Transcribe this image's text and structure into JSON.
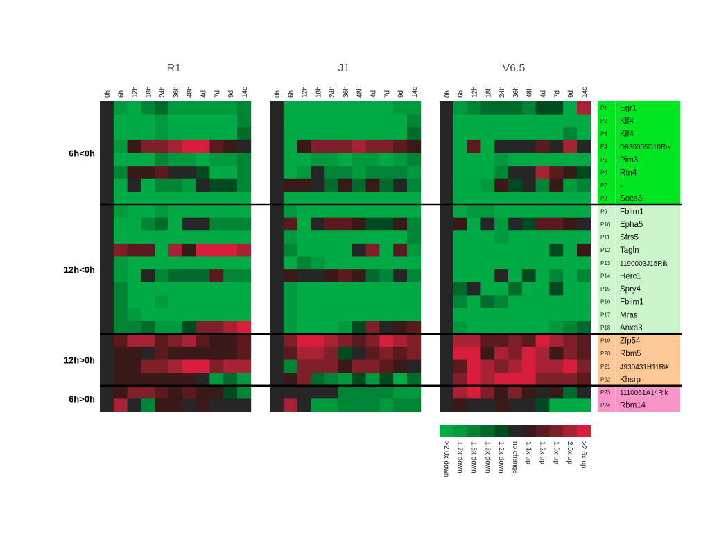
{
  "chart_data": {
    "type": "heatmap",
    "panels": [
      "R1",
      "J1",
      "V6.5"
    ],
    "timepoints": [
      "0h",
      "6h",
      "12h",
      "18h",
      "24h",
      "36h",
      "48h",
      "4d",
      "7d",
      "9d",
      "14d"
    ],
    "row_groups": [
      {
        "label": "6h<0h",
        "rows": 8
      },
      {
        "label": "12h<0h",
        "rows": 10
      },
      {
        "label": "12h>0h",
        "rows": 4
      },
      {
        "label": "6h>0h",
        "rows": 2
      }
    ],
    "genes": [
      {
        "id": "P1",
        "name": "Egr1",
        "group_color": "#00e620"
      },
      {
        "id": "P2",
        "name": "Klf4",
        "group_color": "#00e620"
      },
      {
        "id": "P3",
        "name": "Klf4",
        "group_color": "#00e620"
      },
      {
        "id": "P4",
        "name": "D930005D10Rik",
        "group_color": "#00e620"
      },
      {
        "id": "P5",
        "name": "Pim3",
        "group_color": "#00e620"
      },
      {
        "id": "P6",
        "name": "Rtn4",
        "group_color": "#00e620"
      },
      {
        "id": "P7",
        "name": "-",
        "group_color": "#00e620"
      },
      {
        "id": "P8",
        "name": "Socs3",
        "group_color": "#00e620"
      },
      {
        "id": "P9",
        "name": "Fblim1",
        "group_color": "#ccf5cc"
      },
      {
        "id": "P10",
        "name": "Epha5",
        "group_color": "#ccf5cc"
      },
      {
        "id": "P11",
        "name": "Sfrs5",
        "group_color": "#ccf5cc"
      },
      {
        "id": "P12",
        "name": "Tagln",
        "group_color": "#ccf5cc"
      },
      {
        "id": "P13",
        "name": "1190003J15Rik",
        "group_color": "#ccf5cc"
      },
      {
        "id": "P14",
        "name": "Herc1",
        "group_color": "#ccf5cc"
      },
      {
        "id": "P15",
        "name": "Spry4",
        "group_color": "#ccf5cc"
      },
      {
        "id": "P16",
        "name": "Fblim1",
        "group_color": "#ccf5cc"
      },
      {
        "id": "P17",
        "name": "Mras",
        "group_color": "#ccf5cc"
      },
      {
        "id": "P18",
        "name": "Anxa3",
        "group_color": "#ccf5cc"
      },
      {
        "id": "P19",
        "name": "Zfp54",
        "group_color": "#fdc896"
      },
      {
        "id": "P20",
        "name": "Rbm5",
        "group_color": "#fdc896"
      },
      {
        "id": "P21",
        "name": "4930431H11Rik",
        "group_color": "#fdc896"
      },
      {
        "id": "P22",
        "name": "Khsrp",
        "group_color": "#fdc896"
      },
      {
        "id": "P23",
        "name": "1110061A14Rik",
        "group_color": "#f994c8"
      },
      {
        "id": "P24",
        "name": "Rbm14",
        "group_color": "#f994c8"
      }
    ],
    "color_scale": {
      "labels": [
        ">2.0x down",
        "1.7x down",
        "1.5x down",
        "1.3x down",
        "1.2x down",
        "no change",
        "1.1x up",
        "1.2x up",
        "1.5x up",
        "2.0x up",
        ">2.5x up"
      ],
      "colors": [
        "#00aa44",
        "#009a3e",
        "#008536",
        "#006b2c",
        "#004a20",
        "#262626",
        "#3a1a18",
        "#5a1a1e",
        "#7e1f2a",
        "#a82236",
        "#d81e3c"
      ]
    },
    "level_note": "values are color-scale indices: 0 = >2.0x down ... 5 = no change ... 10 = >2.5x up",
    "values": {
      "R1": [
        [
          5,
          1,
          0,
          2,
          3,
          1,
          1,
          1,
          1,
          1,
          2
        ],
        [
          5,
          0,
          0,
          0,
          1,
          0,
          0,
          0,
          0,
          0,
          2
        ],
        [
          5,
          0,
          0,
          0,
          1,
          0,
          0,
          0,
          0,
          0,
          3
        ],
        [
          5,
          1,
          6,
          8,
          8,
          9,
          10,
          10,
          7,
          6,
          5
        ],
        [
          5,
          0,
          0,
          0,
          2,
          1,
          1,
          0,
          1,
          1,
          2
        ],
        [
          5,
          2,
          6,
          6,
          7,
          5,
          5,
          4,
          0,
          0,
          2
        ],
        [
          5,
          0,
          5,
          0,
          2,
          2,
          1,
          5,
          4,
          4,
          2
        ],
        [
          5,
          0,
          0,
          0,
          0,
          0,
          0,
          0,
          0,
          0,
          0
        ],
        [
          5,
          1,
          0,
          0,
          1,
          0,
          0,
          0,
          0,
          0,
          0
        ],
        [
          5,
          0,
          0,
          2,
          3,
          0,
          5,
          5,
          2,
          2,
          2
        ],
        [
          5,
          0,
          0,
          0,
          0,
          0,
          0,
          0,
          0,
          0,
          0
        ],
        [
          5,
          8,
          7,
          7,
          0,
          9,
          6,
          10,
          10,
          10,
          9
        ],
        [
          5,
          1,
          0,
          0,
          0,
          0,
          0,
          0,
          0,
          0,
          0
        ],
        [
          5,
          1,
          0,
          5,
          2,
          3,
          3,
          3,
          7,
          2,
          2
        ],
        [
          5,
          2,
          0,
          0,
          0,
          0,
          0,
          0,
          0,
          0,
          0
        ],
        [
          5,
          2,
          0,
          0,
          1,
          0,
          0,
          0,
          0,
          0,
          0
        ],
        [
          5,
          2,
          1,
          0,
          0,
          0,
          0,
          0,
          0,
          0,
          0
        ],
        [
          5,
          2,
          2,
          3,
          1,
          1,
          4,
          8,
          8,
          9,
          10
        ],
        [
          5,
          7,
          9,
          9,
          7,
          8,
          9,
          7,
          6,
          6,
          7
        ],
        [
          5,
          6,
          6,
          5,
          7,
          6,
          6,
          6,
          6,
          6,
          7
        ],
        [
          5,
          6,
          6,
          8,
          8,
          9,
          10,
          10,
          8,
          9,
          9
        ],
        [
          5,
          6,
          6,
          6,
          6,
          6,
          6,
          5,
          1,
          3,
          1
        ],
        [
          5,
          6,
          8,
          8,
          7,
          6,
          7,
          6,
          6,
          4,
          2
        ],
        [
          5,
          9,
          5,
          2,
          6,
          6,
          5,
          6,
          5,
          5,
          5
        ]
      ],
      "J1": [
        [
          5,
          0,
          0,
          0,
          0,
          0,
          0,
          0,
          0,
          1,
          1
        ],
        [
          5,
          0,
          0,
          0,
          0,
          0,
          0,
          0,
          0,
          0,
          2
        ],
        [
          5,
          0,
          0,
          0,
          0,
          0,
          0,
          0,
          0,
          0,
          3
        ],
        [
          5,
          0,
          6,
          8,
          8,
          8,
          9,
          8,
          8,
          7,
          6
        ],
        [
          5,
          0,
          0,
          1,
          1,
          0,
          1,
          1,
          0,
          1,
          2
        ],
        [
          5,
          0,
          1,
          5,
          2,
          2,
          1,
          2,
          2,
          2,
          1
        ],
        [
          5,
          6,
          6,
          5,
          3,
          6,
          3,
          6,
          3,
          5,
          2
        ],
        [
          5,
          0,
          0,
          0,
          0,
          0,
          0,
          0,
          0,
          0,
          0
        ],
        [
          5,
          1,
          0,
          0,
          0,
          0,
          0,
          0,
          0,
          0,
          0
        ],
        [
          5,
          7,
          0,
          5,
          7,
          7,
          6,
          4,
          4,
          6,
          2
        ],
        [
          5,
          1,
          0,
          0,
          0,
          0,
          0,
          0,
          0,
          0,
          2
        ],
        [
          5,
          2,
          0,
          0,
          0,
          0,
          5,
          8,
          0,
          7,
          1
        ],
        [
          5,
          0,
          2,
          1,
          0,
          0,
          0,
          0,
          0,
          0,
          0
        ],
        [
          5,
          6,
          5,
          5,
          6,
          7,
          6,
          3,
          2,
          5,
          2
        ],
        [
          5,
          1,
          0,
          0,
          0,
          0,
          0,
          0,
          0,
          0,
          0
        ],
        [
          5,
          1,
          0,
          0,
          0,
          0,
          0,
          0,
          0,
          0,
          0
        ],
        [
          5,
          1,
          0,
          0,
          0,
          0,
          0,
          0,
          0,
          0,
          0
        ],
        [
          5,
          1,
          0,
          0,
          0,
          1,
          4,
          8,
          5,
          6,
          7
        ],
        [
          5,
          8,
          10,
          10,
          9,
          8,
          7,
          8,
          10,
          9,
          8
        ],
        [
          5,
          7,
          9,
          9,
          8,
          4,
          5,
          7,
          8,
          7,
          8
        ],
        [
          5,
          2,
          8,
          8,
          8,
          6,
          8,
          8,
          7,
          6,
          5
        ],
        [
          5,
          6,
          8,
          3,
          2,
          1,
          4,
          1,
          4,
          0,
          3
        ],
        [
          5,
          5,
          5,
          5,
          5,
          2,
          2,
          2,
          2,
          1,
          1
        ],
        [
          5,
          9,
          5,
          1,
          1,
          2,
          2,
          2,
          1,
          2,
          2
        ]
      ],
      "V6.5": [
        [
          5,
          1,
          2,
          3,
          3,
          3,
          2,
          4,
          4,
          0,
          9
        ],
        [
          5,
          0,
          0,
          0,
          0,
          0,
          0,
          0,
          0,
          0,
          0
        ],
        [
          5,
          0,
          0,
          0,
          0,
          0,
          0,
          0,
          0,
          2,
          0
        ],
        [
          5,
          0,
          7,
          0,
          5,
          5,
          5,
          7,
          5,
          9,
          5
        ],
        [
          5,
          0,
          0,
          0,
          1,
          0,
          0,
          0,
          0,
          0,
          0
        ],
        [
          5,
          0,
          0,
          0,
          2,
          5,
          5,
          9,
          7,
          6,
          4
        ],
        [
          5,
          0,
          0,
          1,
          6,
          4,
          5,
          2,
          6,
          1,
          2
        ],
        [
          5,
          0,
          0,
          0,
          0,
          0,
          0,
          0,
          0,
          0,
          0
        ],
        [
          5,
          0,
          1,
          1,
          0,
          0,
          0,
          0,
          0,
          0,
          0
        ],
        [
          5,
          6,
          0,
          5,
          1,
          5,
          4,
          7,
          7,
          6,
          5
        ],
        [
          5,
          0,
          0,
          0,
          1,
          0,
          0,
          0,
          0,
          0,
          0
        ],
        [
          5,
          0,
          0,
          0,
          0,
          0,
          0,
          0,
          4,
          0,
          6
        ],
        [
          5,
          0,
          0,
          0,
          0,
          0,
          0,
          0,
          0,
          0,
          0
        ],
        [
          5,
          0,
          0,
          0,
          5,
          0,
          4,
          0,
          2,
          0,
          2
        ],
        [
          5,
          3,
          5,
          0,
          0,
          3,
          0,
          0,
          4,
          0,
          0
        ],
        [
          5,
          2,
          0,
          3,
          2,
          0,
          0,
          0,
          0,
          0,
          0
        ],
        [
          5,
          0,
          0,
          0,
          0,
          0,
          0,
          0,
          0,
          0,
          0
        ],
        [
          5,
          1,
          0,
          0,
          0,
          0,
          0,
          0,
          1,
          2,
          3
        ],
        [
          5,
          9,
          9,
          7,
          7,
          8,
          7,
          10,
          9,
          8,
          7
        ],
        [
          5,
          10,
          10,
          6,
          9,
          8,
          10,
          9,
          6,
          8,
          7
        ],
        [
          5,
          7,
          10,
          9,
          8,
          9,
          10,
          9,
          9,
          10,
          8
        ],
        [
          5,
          8,
          10,
          9,
          10,
          10,
          10,
          8,
          8,
          8,
          7
        ],
        [
          5,
          9,
          10,
          8,
          6,
          8,
          6,
          5,
          6,
          3,
          5
        ],
        [
          5,
          6,
          5,
          5,
          6,
          5,
          5,
          4,
          0,
          0,
          0
        ]
      ]
    }
  }
}
